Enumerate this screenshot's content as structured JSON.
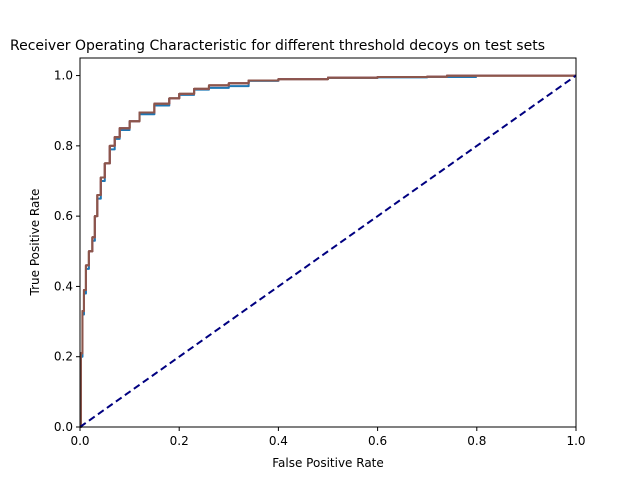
{
  "chart_data": {
    "type": "line",
    "title": "Receiver Operating Characteristic for different threshold decoys on test sets",
    "xlabel": "False Positive Rate",
    "ylabel": "True Positive Rate",
    "xlim": [
      0.0,
      1.0
    ],
    "ylim": [
      0.0,
      1.05
    ],
    "xticks": [
      "0.0",
      "0.2",
      "0.4",
      "0.6",
      "0.8",
      "1.0"
    ],
    "yticks": [
      "0.0",
      "0.2",
      "0.4",
      "0.6",
      "0.8",
      "1.0"
    ],
    "grid": false,
    "legend": "none",
    "series": [
      {
        "color": "#1f77b4",
        "style": "solid",
        "x": [
          0.0,
          0.002,
          0.005,
          0.008,
          0.012,
          0.018,
          0.025,
          0.03,
          0.035,
          0.042,
          0.05,
          0.06,
          0.07,
          0.08,
          0.1,
          0.12,
          0.15,
          0.18,
          0.2,
          0.23,
          0.26,
          0.3,
          0.34,
          0.4,
          0.5,
          0.6,
          0.7,
          0.74,
          0.8
        ],
        "y": [
          0.0,
          0.2,
          0.32,
          0.38,
          0.45,
          0.5,
          0.53,
          0.6,
          0.65,
          0.7,
          0.75,
          0.79,
          0.82,
          0.845,
          0.87,
          0.89,
          0.915,
          0.935,
          0.945,
          0.96,
          0.965,
          0.97,
          0.985,
          0.99,
          0.993,
          0.995,
          0.996,
          0.996,
          0.996
        ]
      },
      {
        "color": "#ff7f0e",
        "style": "solid",
        "x": [
          0.0,
          0.002,
          0.005,
          0.008,
          0.012,
          0.018,
          0.025,
          0.03,
          0.035,
          0.042,
          0.05,
          0.06,
          0.07,
          0.08,
          0.1,
          0.12,
          0.15,
          0.18,
          0.2,
          0.23,
          0.26,
          0.3,
          0.34,
          0.4,
          0.5,
          0.6,
          0.7,
          0.74,
          0.8,
          1.0
        ],
        "y": [
          0.0,
          0.21,
          0.33,
          0.39,
          0.46,
          0.5,
          0.54,
          0.6,
          0.66,
          0.71,
          0.75,
          0.8,
          0.825,
          0.85,
          0.87,
          0.895,
          0.92,
          0.935,
          0.948,
          0.962,
          0.972,
          0.978,
          0.986,
          0.99,
          0.994,
          0.996,
          0.997,
          1.0,
          1.0,
          1.0
        ]
      },
      {
        "color": "#2ca02c",
        "style": "solid",
        "x": [
          0.0,
          0.002,
          0.005,
          0.008,
          0.012,
          0.018,
          0.025,
          0.03,
          0.035,
          0.042,
          0.05,
          0.06,
          0.07,
          0.08,
          0.1,
          0.12,
          0.15,
          0.18,
          0.2,
          0.23,
          0.26,
          0.3,
          0.34,
          0.4,
          0.5,
          0.6,
          0.7,
          0.74,
          0.8,
          1.0
        ],
        "y": [
          0.0,
          0.21,
          0.33,
          0.39,
          0.46,
          0.5,
          0.54,
          0.6,
          0.66,
          0.71,
          0.75,
          0.8,
          0.825,
          0.85,
          0.87,
          0.895,
          0.92,
          0.935,
          0.948,
          0.962,
          0.972,
          0.978,
          0.986,
          0.99,
          0.994,
          0.996,
          0.997,
          1.0,
          1.0,
          1.0
        ]
      },
      {
        "color": "#d62728",
        "style": "solid",
        "x": [
          0.0,
          0.002,
          0.005,
          0.008,
          0.012,
          0.018,
          0.025,
          0.03,
          0.035,
          0.042,
          0.05,
          0.06,
          0.07,
          0.08,
          0.1,
          0.12,
          0.15,
          0.18,
          0.2,
          0.23,
          0.26,
          0.3,
          0.34,
          0.4,
          0.5,
          0.6,
          0.7,
          0.74,
          0.8,
          1.0
        ],
        "y": [
          0.0,
          0.21,
          0.33,
          0.39,
          0.46,
          0.5,
          0.54,
          0.6,
          0.66,
          0.71,
          0.75,
          0.8,
          0.825,
          0.85,
          0.87,
          0.895,
          0.92,
          0.935,
          0.948,
          0.962,
          0.972,
          0.978,
          0.986,
          0.99,
          0.994,
          0.996,
          0.997,
          1.0,
          1.0,
          1.0
        ]
      },
      {
        "color": "#9467bd",
        "style": "solid",
        "x": [
          0.0,
          0.002,
          0.005,
          0.008,
          0.012,
          0.018,
          0.025,
          0.03,
          0.035,
          0.042,
          0.05,
          0.06,
          0.07,
          0.08,
          0.1,
          0.12,
          0.15,
          0.18,
          0.2,
          0.23,
          0.26,
          0.3,
          0.34,
          0.4,
          0.5,
          0.6,
          0.7,
          0.74,
          0.8,
          1.0
        ],
        "y": [
          0.0,
          0.21,
          0.33,
          0.39,
          0.46,
          0.5,
          0.54,
          0.6,
          0.66,
          0.71,
          0.75,
          0.8,
          0.825,
          0.85,
          0.87,
          0.895,
          0.92,
          0.935,
          0.948,
          0.962,
          0.972,
          0.978,
          0.986,
          0.99,
          0.994,
          0.996,
          0.997,
          1.0,
          1.0,
          1.0
        ]
      },
      {
        "color": "#8c564b",
        "style": "solid",
        "x": [
          0.0,
          0.002,
          0.005,
          0.008,
          0.012,
          0.018,
          0.025,
          0.03,
          0.035,
          0.042,
          0.05,
          0.06,
          0.07,
          0.08,
          0.1,
          0.12,
          0.15,
          0.18,
          0.2,
          0.23,
          0.26,
          0.3,
          0.34,
          0.4,
          0.5,
          0.6,
          0.7,
          0.74,
          0.8,
          1.0
        ],
        "y": [
          0.0,
          0.21,
          0.33,
          0.39,
          0.46,
          0.5,
          0.54,
          0.6,
          0.66,
          0.71,
          0.75,
          0.8,
          0.825,
          0.85,
          0.87,
          0.895,
          0.92,
          0.935,
          0.948,
          0.962,
          0.972,
          0.978,
          0.986,
          0.99,
          0.994,
          0.996,
          0.997,
          1.0,
          1.0,
          1.0
        ]
      },
      {
        "color": "#000080",
        "style": "dashed",
        "x": [
          0.0,
          1.0
        ],
        "y": [
          0.0,
          1.0
        ]
      }
    ]
  }
}
